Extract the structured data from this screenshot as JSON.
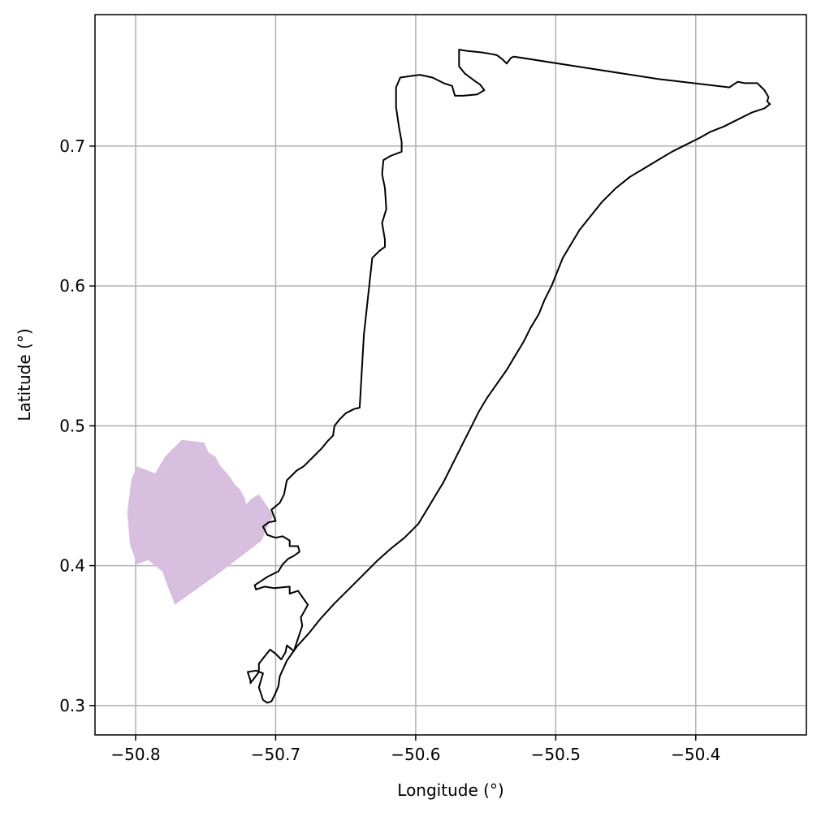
{
  "chart_data": {
    "type": "map",
    "title": "",
    "xlabel": "Longitude (°)",
    "ylabel": "Latitude (°)",
    "xlim": [
      -50.829,
      -50.321
    ],
    "ylim": [
      0.279,
      0.794
    ],
    "grid": true,
    "x_ticks": [
      {
        "value": -50.8,
        "label": "−50.8"
      },
      {
        "value": -50.7,
        "label": "−50.7"
      },
      {
        "value": -50.6,
        "label": "−50.6"
      },
      {
        "value": -50.5,
        "label": "−50.5"
      },
      {
        "value": -50.4,
        "label": "−50.4"
      }
    ],
    "y_ticks": [
      {
        "value": 0.3,
        "label": "0.3"
      },
      {
        "value": 0.4,
        "label": "0.4"
      },
      {
        "value": 0.5,
        "label": "0.5"
      },
      {
        "value": 0.6,
        "label": "0.6"
      },
      {
        "value": 0.7,
        "label": "0.7"
      }
    ],
    "colors": {
      "outline": "#000000",
      "region_fill": "#d8bfdf",
      "grid": "#b0b0b0",
      "axes": "#000000"
    },
    "layers": [
      {
        "kind": "filled-polygon",
        "color": "#d8bfdf",
        "coordinates": [
          [
            -50.803,
            0.462
          ],
          [
            -50.799,
            0.471
          ],
          [
            -50.786,
            0.466
          ],
          [
            -50.779,
            0.478
          ],
          [
            -50.767,
            0.49
          ],
          [
            -50.751,
            0.488
          ],
          [
            -50.748,
            0.481
          ],
          [
            -50.743,
            0.478
          ],
          [
            -50.74,
            0.472
          ],
          [
            -50.733,
            0.464
          ],
          [
            -50.729,
            0.458
          ],
          [
            -50.725,
            0.454
          ],
          [
            -50.722,
            0.448
          ],
          [
            -50.721,
            0.444
          ],
          [
            -50.717,
            0.448
          ],
          [
            -50.712,
            0.451
          ],
          [
            -50.707,
            0.444
          ],
          [
            -50.703,
            0.438
          ],
          [
            -50.702,
            0.435
          ],
          [
            -50.705,
            0.43
          ],
          [
            -50.71,
            0.418
          ],
          [
            -50.74,
            0.395
          ],
          [
            -50.772,
            0.372
          ],
          [
            -50.777,
            0.385
          ],
          [
            -50.781,
            0.396
          ],
          [
            -50.791,
            0.404
          ],
          [
            -50.799,
            0.401
          ],
          [
            -50.804,
            0.415
          ],
          [
            -50.806,
            0.438
          ],
          [
            -50.803,
            0.462
          ]
        ]
      },
      {
        "kind": "outline-polygon",
        "color": "#000000",
        "coordinates": [
          [
            -50.569,
            0.769
          ],
          [
            -50.563,
            0.768
          ],
          [
            -50.553,
            0.767
          ],
          [
            -50.547,
            0.766
          ],
          [
            -50.542,
            0.765
          ],
          [
            -50.538,
            0.762
          ],
          [
            -50.535,
            0.759
          ],
          [
            -50.532,
            0.763
          ],
          [
            -50.53,
            0.764
          ],
          [
            -50.479,
            0.756
          ],
          [
            -50.427,
            0.748
          ],
          [
            -50.376,
            0.742
          ],
          [
            -50.37,
            0.746
          ],
          [
            -50.365,
            0.745
          ],
          [
            -50.356,
            0.745
          ],
          [
            -50.351,
            0.74
          ],
          [
            -50.348,
            0.735
          ],
          [
            -50.349,
            0.732
          ],
          [
            -50.347,
            0.73
          ],
          [
            -50.351,
            0.727
          ],
          [
            -50.36,
            0.724
          ],
          [
            -50.37,
            0.719
          ],
          [
            -50.38,
            0.714
          ],
          [
            -50.39,
            0.71
          ],
          [
            -50.397,
            0.706
          ],
          [
            -50.407,
            0.701
          ],
          [
            -50.417,
            0.696
          ],
          [
            -50.427,
            0.69
          ],
          [
            -50.437,
            0.684
          ],
          [
            -50.447,
            0.678
          ],
          [
            -50.457,
            0.67
          ],
          [
            -50.467,
            0.66
          ],
          [
            -50.475,
            0.65
          ],
          [
            -50.483,
            0.64
          ],
          [
            -50.489,
            0.63
          ],
          [
            -50.495,
            0.62
          ],
          [
            -50.499,
            0.61
          ],
          [
            -50.503,
            0.6
          ],
          [
            -50.508,
            0.59
          ],
          [
            -50.512,
            0.58
          ],
          [
            -50.518,
            0.57
          ],
          [
            -50.523,
            0.56
          ],
          [
            -50.529,
            0.55
          ],
          [
            -50.535,
            0.54
          ],
          [
            -50.542,
            0.53
          ],
          [
            -50.549,
            0.52
          ],
          [
            -50.555,
            0.51
          ],
          [
            -50.56,
            0.5
          ],
          [
            -50.565,
            0.49
          ],
          [
            -50.57,
            0.48
          ],
          [
            -50.575,
            0.47
          ],
          [
            -50.58,
            0.46
          ],
          [
            -50.586,
            0.45
          ],
          [
            -50.592,
            0.44
          ],
          [
            -50.598,
            0.43
          ],
          [
            -50.608,
            0.42
          ],
          [
            -50.618,
            0.412
          ],
          [
            -50.628,
            0.403
          ],
          [
            -50.638,
            0.393
          ],
          [
            -50.648,
            0.383
          ],
          [
            -50.658,
            0.373
          ],
          [
            -50.668,
            0.362
          ],
          [
            -50.676,
            0.352
          ],
          [
            -50.685,
            0.342
          ],
          [
            -50.692,
            0.332
          ],
          [
            -50.697,
            0.321
          ],
          [
            -50.698,
            0.314
          ],
          [
            -50.7,
            0.309
          ],
          [
            -50.703,
            0.303
          ],
          [
            -50.706,
            0.302
          ],
          [
            -50.709,
            0.304
          ],
          [
            -50.712,
            0.313
          ],
          [
            -50.709,
            0.323
          ],
          [
            -50.714,
            0.325
          ],
          [
            -50.72,
            0.324
          ],
          [
            -50.718,
            0.318
          ],
          [
            -50.718,
            0.316
          ],
          [
            -50.712,
            0.324
          ],
          [
            -50.712,
            0.33
          ],
          [
            -50.708,
            0.335
          ],
          [
            -50.704,
            0.34
          ],
          [
            -50.7,
            0.337
          ],
          [
            -50.696,
            0.333
          ],
          [
            -50.693,
            0.338
          ],
          [
            -50.692,
            0.343
          ],
          [
            -50.687,
            0.339
          ],
          [
            -50.685,
            0.345
          ],
          [
            -50.681,
            0.357
          ],
          [
            -50.682,
            0.363
          ],
          [
            -50.677,
            0.372
          ],
          [
            -50.684,
            0.382
          ],
          [
            -50.69,
            0.38
          ],
          [
            -50.69,
            0.385
          ],
          [
            -50.701,
            0.384
          ],
          [
            -50.708,
            0.385
          ],
          [
            -50.714,
            0.383
          ],
          [
            -50.715,
            0.386
          ],
          [
            -50.706,
            0.392
          ],
          [
            -50.698,
            0.396
          ],
          [
            -50.695,
            0.401
          ],
          [
            -50.691,
            0.405
          ],
          [
            -50.687,
            0.407
          ],
          [
            -50.683,
            0.41
          ],
          [
            -50.684,
            0.414
          ],
          [
            -50.69,
            0.414
          ],
          [
            -50.69,
            0.418
          ],
          [
            -50.695,
            0.421
          ],
          [
            -50.7,
            0.42
          ],
          [
            -50.706,
            0.422
          ],
          [
            -50.709,
            0.428
          ],
          [
            -50.705,
            0.431
          ],
          [
            -50.7,
            0.432
          ],
          [
            -50.703,
            0.44
          ],
          [
            -50.697,
            0.445
          ],
          [
            -50.694,
            0.451
          ],
          [
            -50.692,
            0.461
          ],
          [
            -50.685,
            0.468
          ],
          [
            -50.68,
            0.471
          ],
          [
            -50.674,
            0.477
          ],
          [
            -50.667,
            0.484
          ],
          [
            -50.663,
            0.489
          ],
          [
            -50.659,
            0.493
          ],
          [
            -50.658,
            0.5
          ],
          [
            -50.654,
            0.505
          ],
          [
            -50.65,
            0.509
          ],
          [
            -50.644,
            0.512
          ],
          [
            -50.64,
            0.513
          ],
          [
            -50.637,
            0.565
          ],
          [
            -50.631,
            0.62
          ],
          [
            -50.626,
            0.625
          ],
          [
            -50.622,
            0.628
          ],
          [
            -50.622,
            0.633
          ],
          [
            -50.624,
            0.645
          ],
          [
            -50.621,
            0.655
          ],
          [
            -50.622,
            0.67
          ],
          [
            -50.624,
            0.68
          ],
          [
            -50.623,
            0.69
          ],
          [
            -50.618,
            0.693
          ],
          [
            -50.61,
            0.696
          ],
          [
            -50.61,
            0.703
          ],
          [
            -50.612,
            0.714
          ],
          [
            -50.614,
            0.728
          ],
          [
            -50.614,
            0.742
          ],
          [
            -50.611,
            0.749
          ],
          [
            -50.604,
            0.75
          ],
          [
            -50.597,
            0.751
          ],
          [
            -50.588,
            0.749
          ],
          [
            -50.58,
            0.745
          ],
          [
            -50.574,
            0.743
          ],
          [
            -50.572,
            0.736
          ],
          [
            -50.566,
            0.736
          ],
          [
            -50.556,
            0.737
          ],
          [
            -50.551,
            0.74
          ],
          [
            -50.554,
            0.744
          ],
          [
            -50.557,
            0.746
          ],
          [
            -50.561,
            0.749
          ],
          [
            -50.565,
            0.752
          ],
          [
            -50.569,
            0.757
          ],
          [
            -50.569,
            0.769
          ]
        ]
      }
    ]
  }
}
